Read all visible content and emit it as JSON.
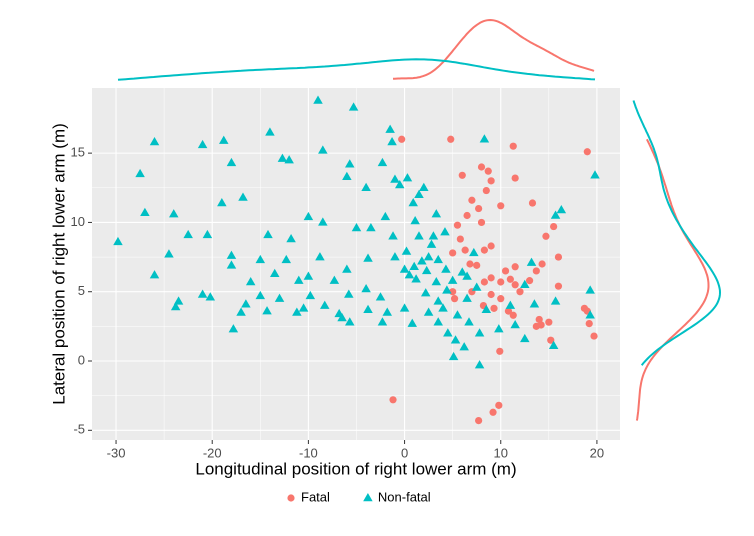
{
  "chart_data": {
    "type": "scatter",
    "xlabel": "Longitudinal position of right lower arm (m)",
    "ylabel": "Lateral position of right lower arm (m)",
    "xlim": [
      -32.5,
      22.4
    ],
    "ylim": [
      -5.7,
      19.7
    ],
    "xticks": [
      -30,
      -20,
      -10,
      0,
      10,
      20
    ],
    "yticks": [
      -5,
      0,
      5,
      10,
      15
    ],
    "grid": true,
    "marginal": "density",
    "legend": "bottom",
    "series": [
      {
        "name": "Fatal",
        "color": "#F8766D",
        "marker": "circle",
        "x": [
          -0.3,
          4.8,
          11.3,
          19,
          6,
          8,
          8.7,
          9,
          11.5,
          8.5,
          13.3,
          7,
          7.7,
          10,
          6.5,
          8,
          5.5,
          15.5,
          14.7,
          5.8,
          9,
          8.3,
          6.3,
          5,
          16,
          6.8,
          7.5,
          10.5,
          11.5,
          13.7,
          14.3,
          9,
          10,
          8.3,
          11,
          13,
          11.5,
          16,
          5,
          7,
          9,
          10,
          12,
          5.2,
          8.2,
          9.3,
          10.8,
          11.3,
          14,
          15,
          13.7,
          14.2,
          18.7,
          19,
          19.2,
          19.7,
          15.2,
          9.9,
          -1.2,
          9.8,
          9.2,
          7.7
        ],
        "values": [
          16,
          16,
          15.5,
          15.1,
          13.4,
          14,
          13.7,
          13,
          13.2,
          12.3,
          11.4,
          11.6,
          11,
          11.2,
          10.5,
          10,
          9.8,
          9.7,
          9,
          8.8,
          8.3,
          8,
          8,
          7.8,
          7.5,
          7,
          6.9,
          6.5,
          6.8,
          6.5,
          7,
          6,
          5.7,
          5.7,
          5.9,
          5.8,
          5.5,
          5.4,
          5,
          5,
          4.8,
          4.5,
          5,
          4.5,
          4,
          3.8,
          3.6,
          3.3,
          3,
          2.8,
          2.5,
          2.6,
          3.8,
          3.6,
          2.7,
          1.8,
          1.5,
          0.7,
          -2.8,
          -3.2,
          -3.7,
          -4.3
        ]
      },
      {
        "name": "Non-fatal",
        "color": "#00BFC4",
        "marker": "triangle",
        "x": [
          -9,
          -5.3,
          -1.5,
          -1.3,
          8.3,
          -26,
          -21,
          -18.8,
          -14,
          -8.5,
          -12.7,
          -12,
          -18,
          -27.5,
          -5.7,
          -2.3,
          -6,
          -1,
          0.3,
          19.8,
          -4,
          -0.5,
          2,
          -16.8,
          -19,
          -24,
          -27,
          -10,
          -8.5,
          -2,
          1.1,
          3.3,
          16.3,
          15.7,
          -22.5,
          -20.5,
          -14.2,
          -11.8,
          -5,
          -3.5,
          -1.2,
          1.5,
          3,
          4.2,
          -29.8,
          -24.5,
          -18,
          -15,
          -12.3,
          -8.8,
          -3.8,
          -1,
          0.2,
          2.5,
          3.5,
          13.2,
          -26,
          -18,
          -13.5,
          -10,
          -6,
          0,
          1,
          2.3,
          4.3,
          6,
          -16,
          -11,
          -7.3,
          -4,
          1.2,
          3.3,
          5,
          7.5,
          12.5,
          19.3,
          -15,
          -9.8,
          -5.8,
          -2.5,
          2.2,
          4.4,
          6.5,
          -23.5,
          -21,
          -20.2,
          -16.5,
          -13,
          -10.5,
          -8.3,
          -6.8,
          -3.8,
          -1.8,
          0,
          2.5,
          4,
          8.5,
          11,
          13.5,
          15.7,
          -23.8,
          -17,
          -14.3,
          -11.2,
          -6.5,
          -2.3,
          0.8,
          3.5,
          6.7,
          11.5,
          -17.8,
          -5.7,
          4.5,
          7.8,
          9.8,
          12.5,
          15.5,
          5.3,
          6.2,
          5.1,
          7.8,
          19.3,
          0.5,
          1.8,
          2.8,
          0.9,
          1.5,
          3.5,
          5.5,
          6.5,
          7.2
        ],
        "values": [
          18.8,
          18.3,
          16.7,
          15.8,
          16,
          15.8,
          15.6,
          15.9,
          16.5,
          15.2,
          14.6,
          14.5,
          14.3,
          13.5,
          14.2,
          14.3,
          13.3,
          13.1,
          13.2,
          13.4,
          12.5,
          12.7,
          12.5,
          11.8,
          11.4,
          10.6,
          10.7,
          10.4,
          10,
          10.4,
          10.1,
          10.6,
          10.9,
          10.5,
          9.1,
          9.1,
          9.1,
          8.8,
          9.6,
          9.6,
          9,
          9,
          9,
          9.3,
          8.6,
          7.7,
          7.6,
          7.3,
          7.3,
          7.5,
          7.4,
          7.5,
          7.9,
          7.5,
          7.3,
          7.1,
          6.2,
          6.9,
          6.3,
          6.1,
          6.6,
          6.6,
          6.8,
          6.5,
          6.6,
          6.4,
          5.7,
          5.8,
          5.8,
          5.2,
          5.9,
          5.7,
          5.8,
          5.3,
          5.5,
          5.1,
          4.7,
          4.7,
          4.8,
          4.6,
          4.9,
          5.1,
          4.5,
          4.3,
          4.8,
          4.6,
          4.1,
          4.5,
          3.8,
          4,
          3.4,
          3.7,
          3.5,
          3.8,
          3.5,
          3.8,
          3.7,
          4,
          4.1,
          4.3,
          3.9,
          3.5,
          3.6,
          3.5,
          3.1,
          2.8,
          2.7,
          2.8,
          2.8,
          2.6,
          2.3,
          2.8,
          2,
          2,
          2.3,
          1.6,
          1.1,
          1.5,
          1,
          0.3,
          -0.3,
          3.3,
          6.2,
          7.2,
          8.4,
          11.4,
          12,
          4.3,
          3.3,
          6.1,
          7.8
        ]
      }
    ]
  }
}
